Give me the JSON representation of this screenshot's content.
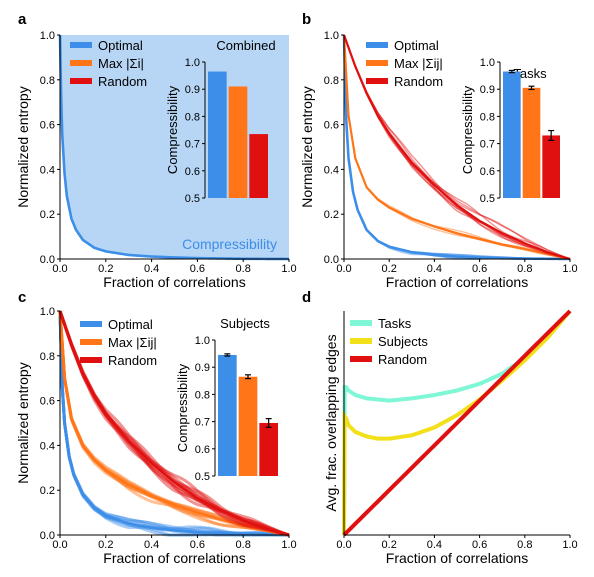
{
  "colors": {
    "optimal": "#3d8ee8",
    "max": "#ff7518",
    "random": "#e01010",
    "tasks": "#7ff7d6",
    "subjects": "#f2e01a",
    "shade": "#b7d6f5"
  },
  "chart_data": [
    {
      "panel": "a",
      "type": "line",
      "xlabel": "Fraction of correlations",
      "ylabel": "Normalized entropy",
      "xlim": [
        0,
        1
      ],
      "ylim": [
        0,
        1
      ],
      "xticks": [
        "0.0",
        "0.2",
        "0.4",
        "0.6",
        "0.8",
        "1.0"
      ],
      "yticks": [
        "0.0",
        "0.2",
        "0.4",
        "0.6",
        "0.8",
        "1.0"
      ],
      "shaded_label": "Compressibility",
      "legend": [
        "Optimal",
        "Max |Σi|",
        "Random"
      ],
      "series": [
        {
          "name": "Optimal",
          "x": [
            0,
            0.005,
            0.01,
            0.02,
            0.03,
            0.05,
            0.07,
            0.1,
            0.15,
            0.2,
            0.3,
            0.4,
            0.5,
            0.6,
            0.8,
            1.0
          ],
          "y": [
            1.0,
            0.72,
            0.55,
            0.38,
            0.28,
            0.18,
            0.13,
            0.085,
            0.05,
            0.034,
            0.018,
            0.011,
            0.007,
            0.004,
            0.001,
            0
          ]
        }
      ],
      "inset": {
        "type": "bar",
        "title": "Combined",
        "ylabel": "Compressibility",
        "ylim": [
          0.5,
          1.0
        ],
        "yticks": [
          "0.5",
          "0.6",
          "0.7",
          "0.8",
          "0.9",
          "1.0"
        ],
        "categories": [
          "Optimal",
          "Max",
          "Random"
        ],
        "values": [
          0.965,
          0.91,
          0.735
        ],
        "errors": [
          0,
          0,
          0
        ]
      }
    },
    {
      "panel": "b",
      "type": "line",
      "xlabel": "Fraction of correlations",
      "ylabel": "Normalized entropy",
      "xlim": [
        0,
        1
      ],
      "ylim": [
        0,
        1
      ],
      "xticks": [
        "0.0",
        "0.2",
        "0.4",
        "0.6",
        "0.8",
        "1.0"
      ],
      "yticks": [
        "0.0",
        "0.2",
        "0.4",
        "0.6",
        "0.8",
        "1.0"
      ],
      "legend": [
        "Optimal",
        "Max |Σij|",
        "Random"
      ],
      "series": [
        {
          "name": "Optimal",
          "x": [
            0,
            0.01,
            0.02,
            0.04,
            0.06,
            0.1,
            0.15,
            0.2,
            0.3,
            0.4,
            0.5,
            0.6,
            0.8,
            1.0
          ],
          "y": [
            1.0,
            0.62,
            0.45,
            0.3,
            0.22,
            0.13,
            0.08,
            0.055,
            0.03,
            0.018,
            0.011,
            0.006,
            0.002,
            0
          ]
        },
        {
          "name": "Max |Σij|",
          "x": [
            0,
            0.02,
            0.05,
            0.1,
            0.15,
            0.2,
            0.3,
            0.4,
            0.5,
            0.6,
            0.7,
            0.8,
            0.9,
            1.0
          ],
          "y": [
            1.0,
            0.64,
            0.45,
            0.32,
            0.265,
            0.23,
            0.18,
            0.145,
            0.115,
            0.09,
            0.065,
            0.045,
            0.022,
            0
          ]
        },
        {
          "name": "Random",
          "x": [
            0,
            0.05,
            0.1,
            0.15,
            0.2,
            0.3,
            0.4,
            0.5,
            0.6,
            0.7,
            0.8,
            0.9,
            1.0
          ],
          "y": [
            1.0,
            0.86,
            0.74,
            0.64,
            0.56,
            0.43,
            0.33,
            0.24,
            0.17,
            0.115,
            0.07,
            0.03,
            0
          ]
        }
      ],
      "inset": {
        "type": "bar",
        "title": "Tasks",
        "ylabel": "Compressibility",
        "ylim": [
          0.5,
          1.0
        ],
        "yticks": [
          "0.5",
          "0.6",
          "0.7",
          "0.8",
          "0.9",
          "1.0"
        ],
        "categories": [
          "Optimal",
          "Max",
          "Random"
        ],
        "values": [
          0.965,
          0.905,
          0.73
        ],
        "errors": [
          0.004,
          0.006,
          0.018
        ]
      }
    },
    {
      "panel": "c",
      "type": "line",
      "xlabel": "Fraction of correlations",
      "ylabel": "Normalized entropy",
      "xlim": [
        0,
        1
      ],
      "ylim": [
        0,
        1
      ],
      "xticks": [
        "0.0",
        "0.2",
        "0.4",
        "0.6",
        "0.8",
        "1.0"
      ],
      "yticks": [
        "0.0",
        "0.2",
        "0.4",
        "0.6",
        "0.8",
        "1.0"
      ],
      "legend": [
        "Optimal",
        "Max |Σij|",
        "Random"
      ],
      "series": [
        {
          "name": "Optimal",
          "x": [
            0,
            0.01,
            0.02,
            0.04,
            0.06,
            0.1,
            0.15,
            0.2,
            0.3,
            0.4,
            0.5,
            0.6,
            0.8,
            1.0
          ],
          "y": [
            1.0,
            0.66,
            0.5,
            0.35,
            0.27,
            0.18,
            0.12,
            0.085,
            0.05,
            0.032,
            0.02,
            0.012,
            0.004,
            0
          ]
        },
        {
          "name": "Max |Σij|",
          "x": [
            0,
            0.02,
            0.05,
            0.1,
            0.15,
            0.2,
            0.3,
            0.4,
            0.5,
            0.6,
            0.7,
            0.8,
            0.9,
            1.0
          ],
          "y": [
            1.0,
            0.7,
            0.52,
            0.4,
            0.335,
            0.29,
            0.225,
            0.175,
            0.135,
            0.1,
            0.07,
            0.045,
            0.022,
            0
          ]
        },
        {
          "name": "Random",
          "x": [
            0,
            0.05,
            0.1,
            0.15,
            0.2,
            0.3,
            0.4,
            0.5,
            0.6,
            0.7,
            0.8,
            0.9,
            1.0
          ],
          "y": [
            1.0,
            0.85,
            0.72,
            0.62,
            0.54,
            0.42,
            0.32,
            0.235,
            0.165,
            0.11,
            0.065,
            0.03,
            0
          ]
        }
      ],
      "inset": {
        "type": "bar",
        "title": "Subjects",
        "ylabel": "Compressibility",
        "ylim": [
          0.5,
          1.0
        ],
        "yticks": [
          "0.5",
          "0.6",
          "0.7",
          "0.8",
          "0.9",
          "1.0"
        ],
        "categories": [
          "Optimal",
          "Max",
          "Random"
        ],
        "values": [
          0.945,
          0.865,
          0.695
        ],
        "errors": [
          0.004,
          0.007,
          0.016
        ]
      }
    },
    {
      "panel": "d",
      "type": "line",
      "xlabel": "Fraction of correlations",
      "ylabel": "Avg. frac. overlapping edges",
      "xlim": [
        0,
        1
      ],
      "ylim": [
        0,
        1
      ],
      "xticks": [
        "0.0",
        "0.2",
        "0.4",
        "0.6",
        "0.8",
        "1.0"
      ],
      "yticks": [],
      "legend": [
        "Tasks",
        "Subjects",
        "Random"
      ],
      "series": [
        {
          "name": "Tasks",
          "x": [
            0,
            0.003,
            0.01,
            0.02,
            0.05,
            0.1,
            0.15,
            0.2,
            0.3,
            0.4,
            0.5,
            0.6,
            0.7,
            0.8,
            0.9,
            1.0
          ],
          "y": [
            0,
            0.66,
            0.66,
            0.645,
            0.625,
            0.61,
            0.605,
            0.6,
            0.61,
            0.625,
            0.645,
            0.675,
            0.72,
            0.79,
            0.88,
            1.0
          ]
        },
        {
          "name": "Subjects",
          "x": [
            0,
            0.003,
            0.01,
            0.02,
            0.05,
            0.1,
            0.15,
            0.2,
            0.3,
            0.4,
            0.5,
            0.6,
            0.7,
            0.8,
            0.9,
            1.0
          ],
          "y": [
            0,
            0.53,
            0.52,
            0.49,
            0.46,
            0.44,
            0.43,
            0.43,
            0.445,
            0.48,
            0.535,
            0.605,
            0.69,
            0.78,
            0.88,
            1.0
          ]
        },
        {
          "name": "Random",
          "x": [
            0,
            1.0
          ],
          "y": [
            0,
            1.0
          ]
        }
      ]
    }
  ],
  "panel_labels": [
    "a",
    "b",
    "c",
    "d"
  ]
}
